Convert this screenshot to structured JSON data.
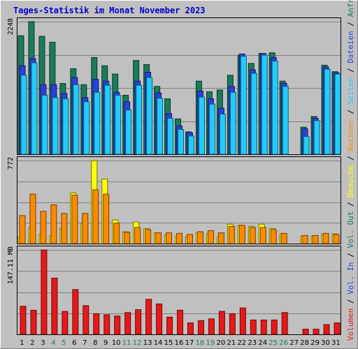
{
  "chart_data": {
    "type": "bar",
    "title": "Tages-Statistik im Monat November 2023",
    "days": [
      "1",
      "2",
      "3",
      "4",
      "5",
      "6",
      "7",
      "8",
      "9",
      "10",
      "11",
      "12",
      "13",
      "14",
      "15",
      "16",
      "17",
      "18",
      "19",
      "20",
      "21",
      "22",
      "23",
      "24",
      "25",
      "26",
      "27",
      "28",
      "29",
      "30",
      "31"
    ],
    "weekend_days": [
      "4",
      "5",
      "11",
      "12",
      "18",
      "19",
      "25",
      "26"
    ],
    "colors": {
      "anfragen": "#1b7a5a",
      "dateien": "#2a40e0",
      "seiten": "#22ccff",
      "besuche": "#ffff00",
      "rechner": "#ff8a00",
      "volumen": "#e81818",
      "weekend_label": "#1b7a5a",
      "title": "#0000cc"
    },
    "side_labels": {
      "volumen": "Volumen",
      "vol_in": "Vol. In",
      "vol_out": "Vol. Out",
      "besuche": "Besuche",
      "rechner": "Rechner",
      "seiten": "Seiten",
      "dateien": "Dateien",
      "anfragen": "Anfragen",
      "sep": " / "
    },
    "panels": [
      {
        "id": "top",
        "ymax_label": "2248",
        "ymax": 2248,
        "series": [
          {
            "key": "anfragen",
            "values": [
              2010,
              2248,
              2000,
              1900,
              1200,
              1450,
              1180,
              1640,
              1500,
              1360,
              1000,
              1590,
              1520,
              1150,
              940,
              600,
              380,
              1240,
              1060,
              1090,
              1340,
              1680,
              1540,
              1710,
              1720,
              1240,
              0,
              460,
              640,
              1510,
              1400
            ]
          },
          {
            "key": "dateien",
            "values": [
              1500,
              1620,
              1180,
              1180,
              1030,
              1300,
              960,
              1270,
              1240,
              1050,
              890,
              1240,
              1390,
              1040,
              690,
              480,
              365,
              1070,
              940,
              780,
              1150,
              1700,
              1430,
              1710,
              1640,
              1200,
              0,
              430,
              610,
              1480,
              1380
            ]
          },
          {
            "key": "seiten",
            "values": [
              1340,
              1550,
              1000,
              960,
              940,
              1180,
              890,
              1050,
              1170,
              1000,
              750,
              1170,
              1300,
              950,
              610,
              420,
              310,
              970,
              850,
              680,
              1050,
              1660,
              1370,
              1680,
              1580,
              1150,
              0,
              300,
              570,
              1440,
              1360
            ]
          }
        ]
      },
      {
        "id": "middle",
        "ymax_label": "772",
        "ymax": 772,
        "series": [
          {
            "key": "besuche",
            "values": [
              60,
              150,
              90,
              70,
              140,
              470,
              190,
              770,
              600,
              220,
              110,
              200,
              140,
              100,
              80,
              70,
              65,
              100,
              90,
              60,
              180,
              170,
              160,
              180,
              140,
              90,
              0,
              70,
              70,
              90,
              90
            ]
          },
          {
            "key": "rechner",
            "values": [
              260,
              460,
              300,
              360,
              280,
              450,
              280,
              500,
              460,
              190,
              105,
              150,
              130,
              100,
              100,
              95,
              85,
              110,
              120,
              100,
              160,
              170,
              150,
              150,
              130,
              95,
              0,
              75,
              75,
              95,
              85
            ]
          }
        ]
      },
      {
        "id": "bottom",
        "ymax_label": "147.11 MB",
        "ymax": 147.11,
        "series": [
          {
            "key": "volumen",
            "values": [
              49,
              42,
              147,
              98,
              40,
              78,
              50,
              36,
              34,
              32,
              38,
              43,
              61,
              53,
              30,
              42,
              20,
              24,
              27,
              40,
              36,
              46,
              25,
              25,
              25,
              38,
              0,
              9,
              9,
              17,
              20
            ]
          }
        ]
      }
    ]
  }
}
